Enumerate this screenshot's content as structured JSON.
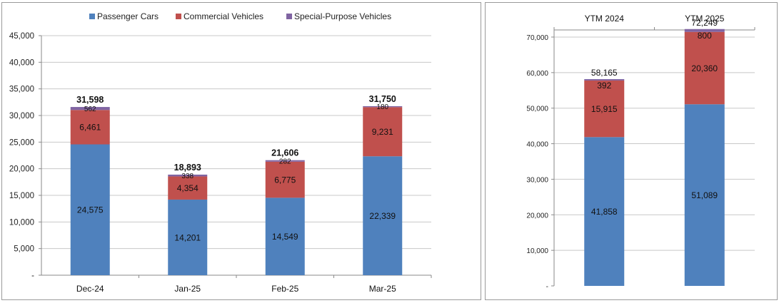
{
  "colors": {
    "passenger": "#4f81bd",
    "commercial": "#c0504d",
    "special": "#8064a2",
    "grid": "#c8c8c8",
    "axis": "#8a8a8a"
  },
  "chart_data": [
    {
      "type": "bar",
      "stacked": true,
      "categories": [
        "Dec-24",
        "Jan-25",
        "Feb-25",
        "Mar-25"
      ],
      "series": [
        {
          "name": "Passenger Cars",
          "values": [
            24575,
            14201,
            14549,
            22339
          ],
          "labels": [
            "24,575",
            "14,201",
            "14,549",
            "22,339"
          ]
        },
        {
          "name": "Commercial Vehicles",
          "values": [
            6461,
            4354,
            6775,
            9231
          ],
          "labels": [
            "6,461",
            "4,354",
            "6,775",
            "9,231"
          ]
        },
        {
          "name": "Special-Purpose Vehicles",
          "values": [
            562,
            338,
            282,
            180
          ],
          "labels": [
            "562",
            "338",
            "282",
            "180"
          ]
        }
      ],
      "totals": [
        "31,598",
        "18,893",
        "21,606",
        "31,750"
      ],
      "yticks": [
        "-",
        "5,000",
        "10,000",
        "15,000",
        "20,000",
        "25,000",
        "30,000",
        "35,000",
        "40,000",
        "45,000"
      ],
      "ylim": [
        0,
        45000
      ],
      "grid": true,
      "legend": "top"
    },
    {
      "type": "bar",
      "stacked": true,
      "categories": [
        "YTM 2024",
        "YTM 2025"
      ],
      "series": [
        {
          "name": "Passenger Cars",
          "values": [
            41858,
            51089
          ],
          "labels": [
            "41,858",
            "51,089"
          ]
        },
        {
          "name": "Commercial Vehicles",
          "values": [
            15915,
            20360
          ],
          "labels": [
            "15,915",
            "20,360"
          ]
        },
        {
          "name": "Special-Purpose Vehicles",
          "values": [
            392,
            800
          ],
          "labels": [
            "392",
            "800"
          ]
        }
      ],
      "totals": [
        "58,165",
        "72,249"
      ],
      "yticks": [
        "-",
        "10,000",
        "20,000",
        "30,000",
        "40,000",
        "50,000",
        "60,000",
        "70,000"
      ],
      "ylim": [
        0,
        72000
      ],
      "grid": true,
      "category_axis": "top"
    }
  ]
}
